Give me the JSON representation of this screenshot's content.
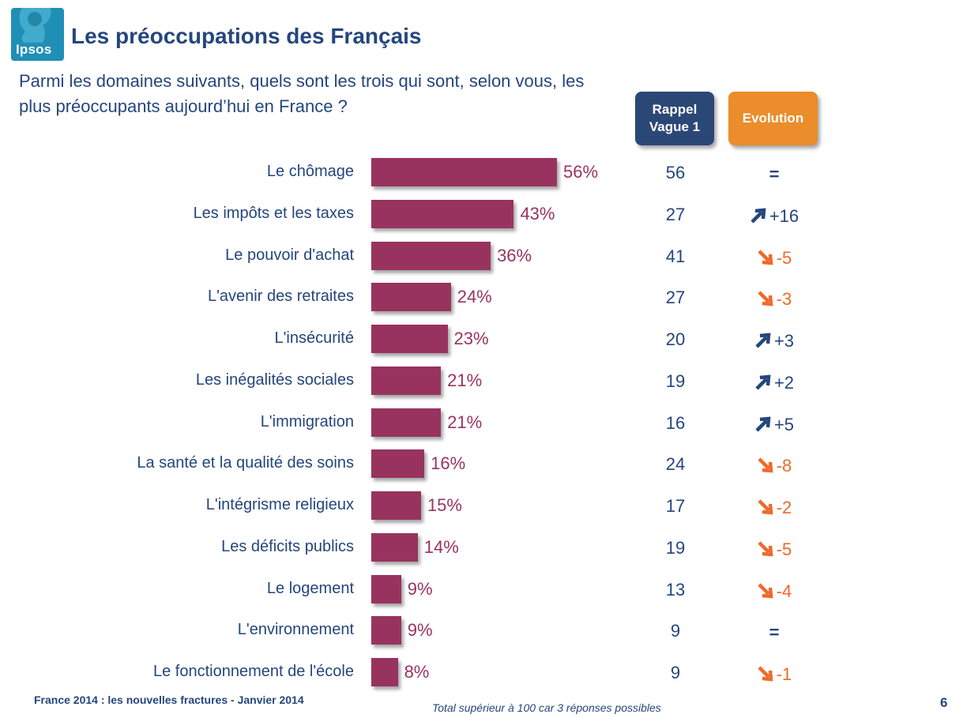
{
  "logo": {
    "text": "Ipsos"
  },
  "title": "Les préoccupations des Français",
  "question": "Parmi les domaines suivants, quels sont les trois qui sont, selon vous, les plus préoccupants aujourd’hui en France ?",
  "headers": {
    "rappel_line1": "Rappel",
    "rappel_line2": "Vague 1",
    "evolution": "Evolution"
  },
  "colors": {
    "bar": "#98335f",
    "text_blue": "#24467c",
    "header_blue": "#2b4776",
    "header_orange": "#ea8d2a",
    "down": "#ef6a2b",
    "up": "#24467c"
  },
  "chart_data": {
    "type": "bar",
    "orientation": "horizontal",
    "categories": [
      "Le chômage",
      "Les impôts et les taxes",
      "Le pouvoir d'achat",
      "L'avenir des retraites",
      "L'insécurité",
      "Les inégalités sociales",
      "L'immigration",
      "La santé et la qualité des soins",
      "L'intégrisme religieux",
      "Les déficits publics",
      "Le logement",
      "L'environnement",
      "Le fonctionnement de l'école"
    ],
    "values": [
      56,
      43,
      36,
      24,
      23,
      21,
      21,
      16,
      15,
      14,
      9,
      9,
      8
    ],
    "value_labels": [
      "56%",
      "43%",
      "36%",
      "24%",
      "23%",
      "21%",
      "21%",
      "16%",
      "15%",
      "14%",
      "9%",
      "9%",
      "8%"
    ],
    "rappel_vague1": [
      "56",
      "27",
      "41",
      "27",
      "20",
      "19",
      "16",
      "24",
      "17",
      "19",
      "13",
      "9",
      "9"
    ],
    "evolution": [
      {
        "dir": "eq",
        "text": "="
      },
      {
        "dir": "up",
        "text": "+16"
      },
      {
        "dir": "down",
        "text": "-5"
      },
      {
        "dir": "down",
        "text": "-3"
      },
      {
        "dir": "up",
        "text": "+3"
      },
      {
        "dir": "up",
        "text": "+2"
      },
      {
        "dir": "up",
        "text": "+5"
      },
      {
        "dir": "down",
        "text": "-8"
      },
      {
        "dir": "down",
        "text": "-2"
      },
      {
        "dir": "down",
        "text": "-5"
      },
      {
        "dir": "down",
        "text": "-4"
      },
      {
        "dir": "eq",
        "text": "="
      },
      {
        "dir": "down",
        "text": "-1"
      }
    ],
    "xlim": [
      0,
      56
    ],
    "title": "",
    "xlabel": "",
    "ylabel": ""
  },
  "footer": {
    "left": "France 2014 : les nouvelles fractures - Janvier 2014",
    "note": "Total supérieur à 100 car 3 réponses possibles",
    "page": "6"
  }
}
